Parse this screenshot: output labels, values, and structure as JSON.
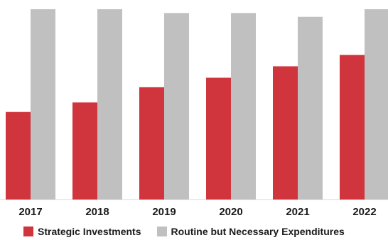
{
  "chart_data": {
    "type": "bar",
    "title": "",
    "xlabel": "",
    "ylabel": "",
    "ylim": [
      0,
      100
    ],
    "grid": false,
    "legend_position": "bottom",
    "categories": [
      "2017",
      "2018",
      "2019",
      "2020",
      "2021",
      "2022"
    ],
    "series": [
      {
        "name": "Strategic Investments",
        "color": "#d0343c",
        "values": [
          46,
          51,
          59,
          64,
          70,
          76
        ]
      },
      {
        "name": "Routine but Necessary Expenditures",
        "color": "#c0c0c0",
        "values": [
          100,
          100,
          98,
          98,
          96,
          100
        ]
      }
    ]
  }
}
